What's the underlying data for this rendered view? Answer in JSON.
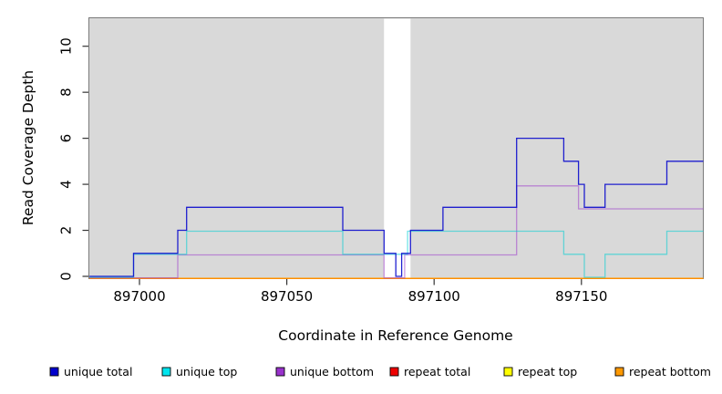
{
  "figure": {
    "title": "",
    "background_color": "#ffffff",
    "panel_color": "#d9d9d9"
  },
  "chart_data": {
    "type": "line",
    "subtype": "step-coverage",
    "title": "",
    "xlabel": "Coordinate in Reference Genome",
    "ylabel": "Read Coverage Depth",
    "xlim": [
      896983,
      897191
    ],
    "ylim": [
      0,
      11.2
    ],
    "xticks": [
      897000,
      897050,
      897100,
      897150
    ],
    "yticks": [
      0,
      2,
      4,
      6,
      8,
      10
    ],
    "grid": false,
    "legend_position": "bottom",
    "panel_background": "#d9d9d9",
    "gap_region": {
      "x_start": 897083,
      "x_end": 897092,
      "color": "#ffffff"
    },
    "series": [
      {
        "name": "repeat total",
        "color": "#e60000",
        "render_color": "rgba(230,0,0,1)",
        "dy": 2.3,
        "points": [
          [
            896983,
            0
          ]
        ]
      },
      {
        "name": "repeat top",
        "color": "#ffff00",
        "render_color": "rgba(255,255,0,1)",
        "dy": 2.3,
        "points": [
          [
            896983,
            0
          ]
        ]
      },
      {
        "name": "repeat bottom",
        "color": "#ff8c00",
        "render_color": "rgba(255,140,0,1)",
        "dy": 2.3,
        "points": [
          [
            896983,
            0
          ]
        ]
      },
      {
        "name": "unique bottom",
        "color": "#9932cc",
        "render_color": "rgba(153,50,204,0.5)",
        "dy": 1.7,
        "points": [
          [
            896983,
            0
          ],
          [
            897013,
            1
          ],
          [
            897083,
            0
          ],
          [
            897090,
            1
          ],
          [
            897128,
            4
          ],
          [
            897149,
            3
          ]
        ]
      },
      {
        "name": "unique top",
        "color": "#00ced1",
        "render_color": "rgba(0,206,209,0.55)",
        "dy": 1.0,
        "points": [
          [
            896983,
            0
          ],
          [
            896998,
            1
          ],
          [
            897016,
            2
          ],
          [
            897069,
            1
          ],
          [
            897091,
            2
          ],
          [
            897144,
            1
          ],
          [
            897151,
            0
          ],
          [
            897158,
            1
          ],
          [
            897179,
            2
          ]
        ]
      },
      {
        "name": "unique total",
        "color": "#0000cd",
        "render_color": "rgba(15,15,205,0.92)",
        "dy": 0,
        "points": [
          [
            896983,
            0
          ],
          [
            896998,
            1
          ],
          [
            897013,
            2
          ],
          [
            897016,
            3
          ],
          [
            897069,
            2
          ],
          [
            897083,
            1
          ],
          [
            897087,
            0
          ],
          [
            897089,
            1
          ],
          [
            897092,
            2
          ],
          [
            897103,
            3
          ],
          [
            897128,
            6
          ],
          [
            897144,
            5
          ],
          [
            897149,
            4
          ],
          [
            897151,
            3
          ],
          [
            897158,
            4
          ],
          [
            897179,
            5
          ]
        ]
      }
    ]
  },
  "legend": {
    "items": [
      {
        "label": "unique total",
        "color": "#0000cd"
      },
      {
        "label": "unique top",
        "color": "#00e5ee"
      },
      {
        "label": "unique bottom",
        "color": "#9932cc"
      },
      {
        "label": "repeat total",
        "color": "#ee0000"
      },
      {
        "label": "repeat top",
        "color": "#ffff00"
      },
      {
        "label": "repeat bottom",
        "color": "#ff9900"
      }
    ]
  }
}
